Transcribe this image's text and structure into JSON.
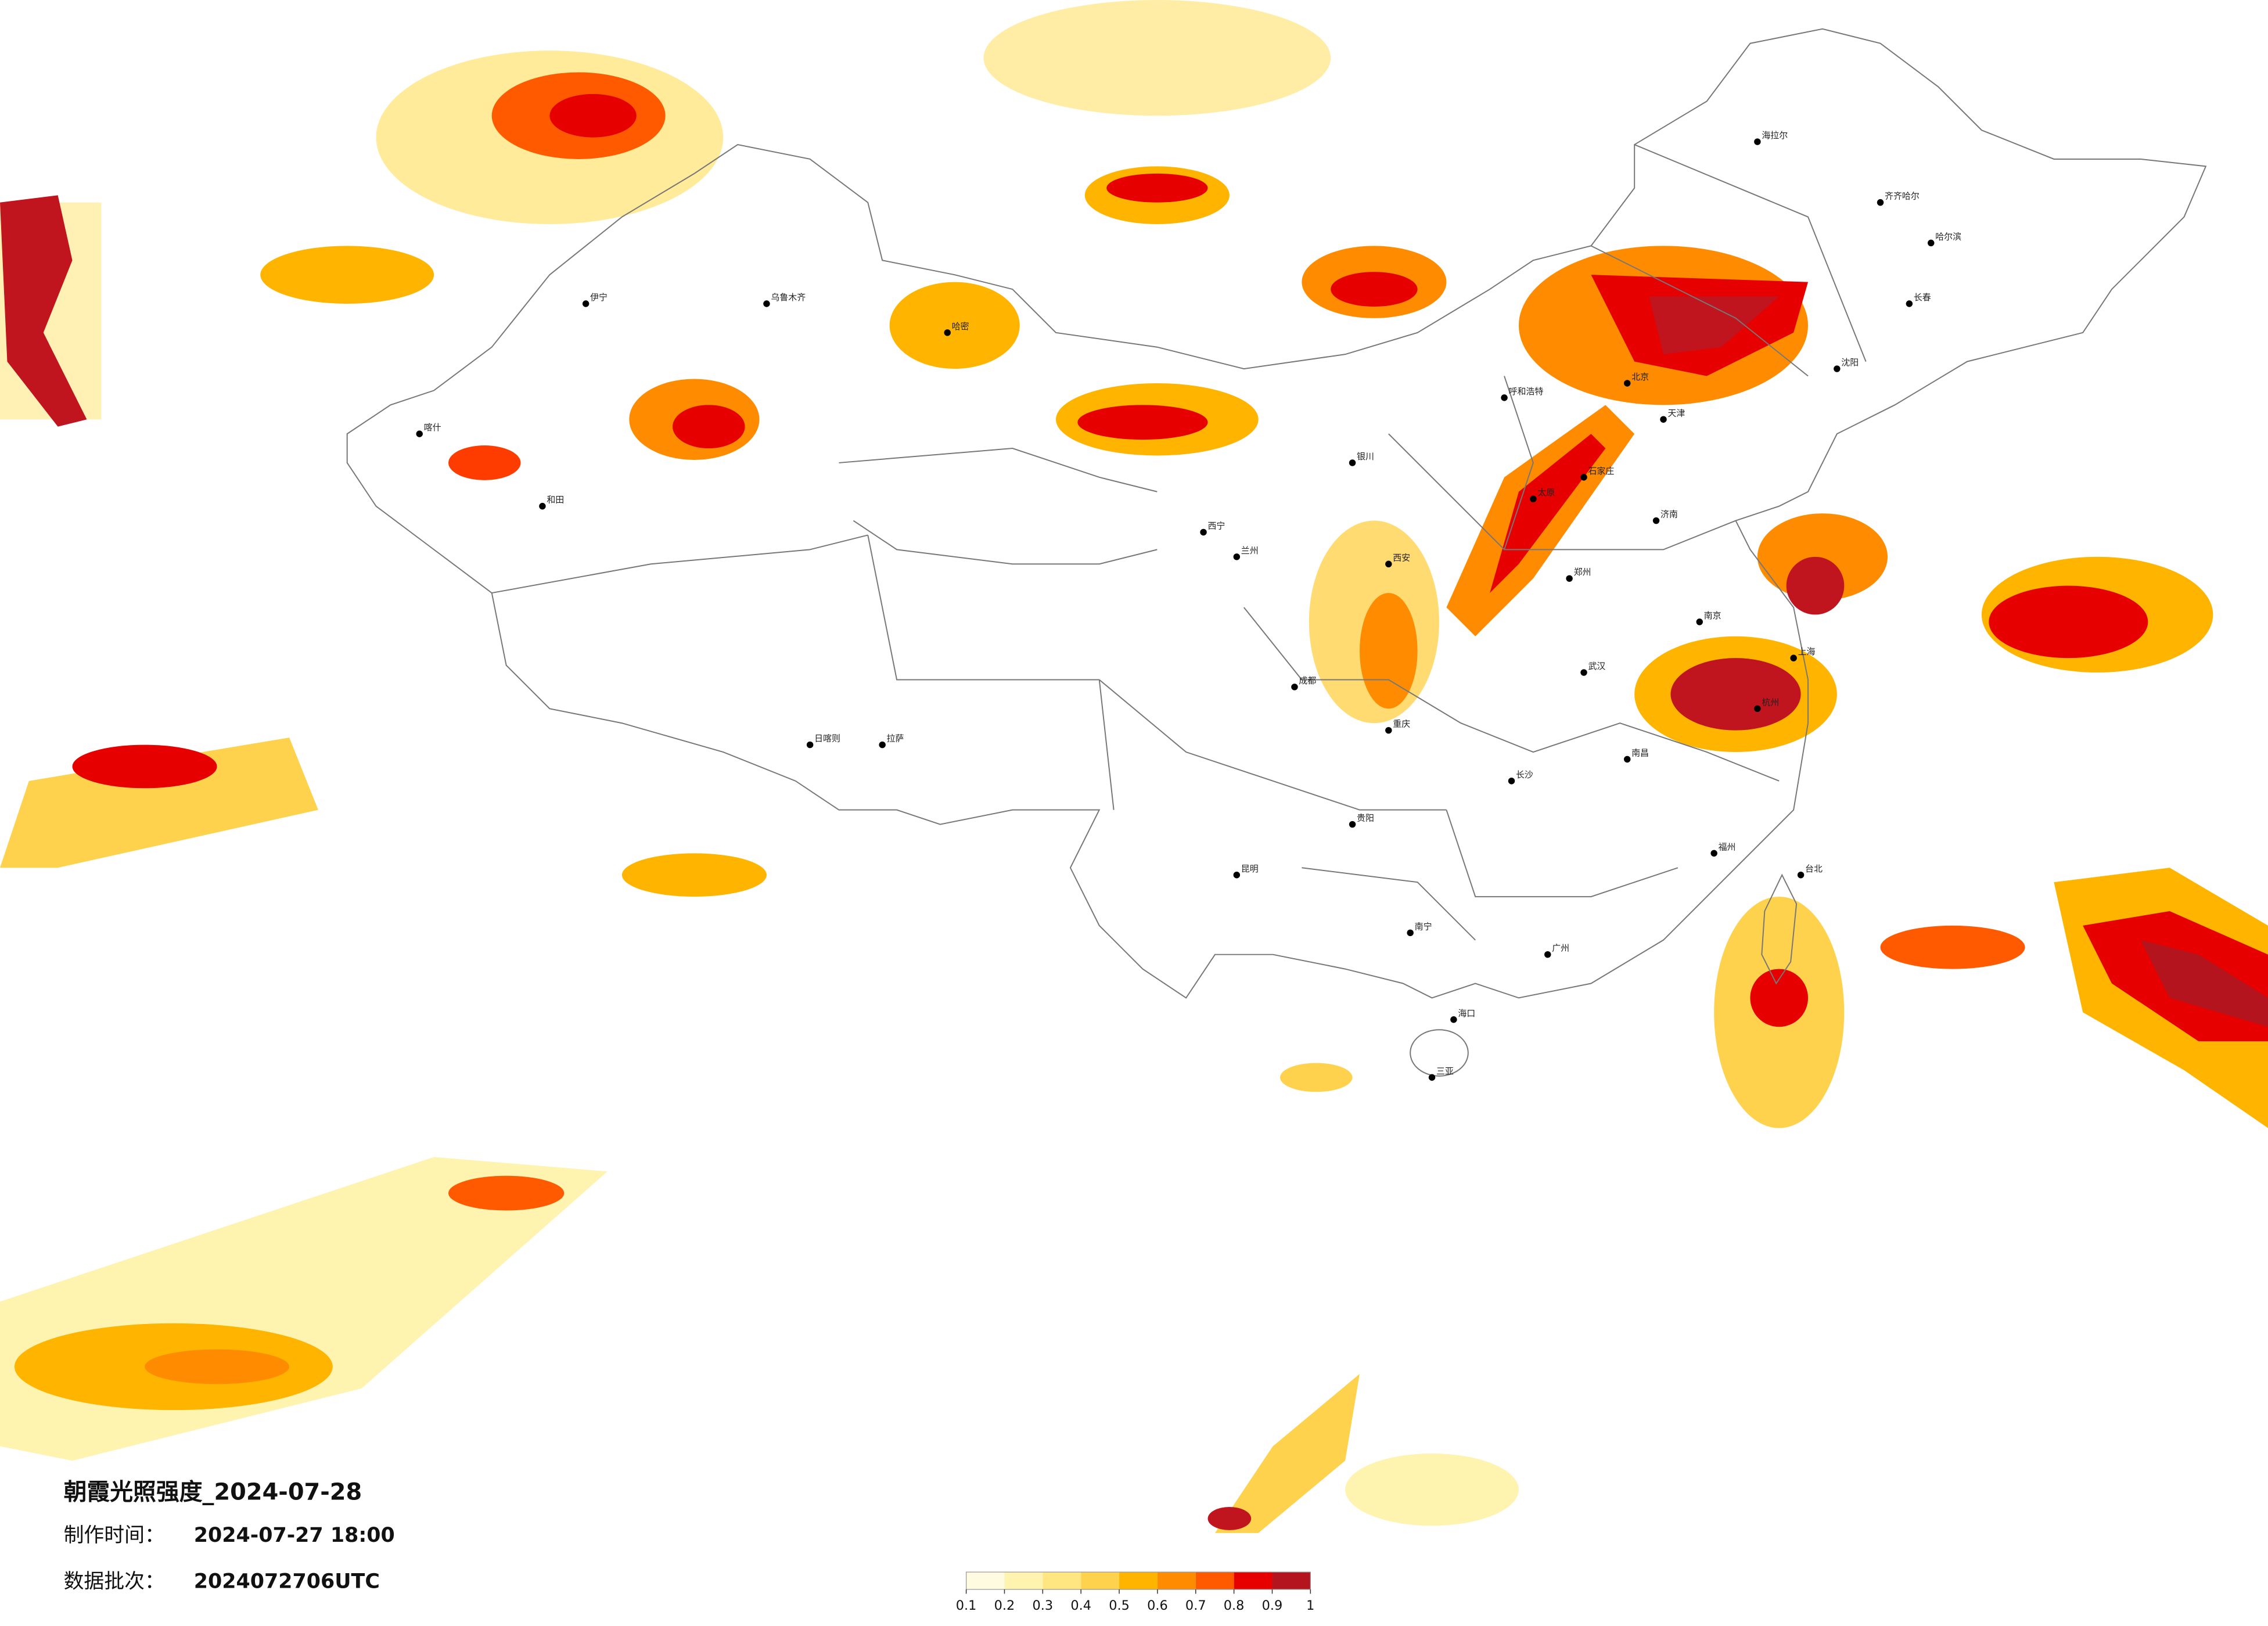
{
  "header": {
    "title": "朝霞光照强度_2024-07-28",
    "made_time": {
      "label": "制作时间：",
      "value": "2024-07-27 18:00"
    },
    "batch": {
      "label": "数据批次：",
      "value": "2024072706UTC"
    }
  },
  "legend": {
    "ticks": [
      0.1,
      0.2,
      0.3,
      0.4,
      0.5,
      0.6,
      0.7,
      0.8,
      0.9,
      1
    ],
    "colors": [
      "#fffbe0",
      "#fff3b0",
      "#ffe680",
      "#ffd24d",
      "#ffb400",
      "#ff8c00",
      "#ff5a00",
      "#e60000",
      "#b4141e"
    ]
  },
  "cities": [
    "海拉尔",
    "齐齐哈尔",
    "哈尔滨",
    "长春",
    "沈阳",
    "北京",
    "天津",
    "石家庄",
    "太原",
    "呼和浩特",
    "济南",
    "郑州",
    "西安",
    "兰州",
    "西宁",
    "银川",
    "乌鲁木齐",
    "伊宁",
    "喀什",
    "和田",
    "哈密",
    "拉萨",
    "日喀则",
    "成都",
    "重庆",
    "贵阳",
    "昆明",
    "南宁",
    "广州",
    "南昌",
    "长沙",
    "武汉",
    "南京",
    "上海",
    "杭州",
    "福州",
    "台北",
    "海口",
    "三亚"
  ]
}
